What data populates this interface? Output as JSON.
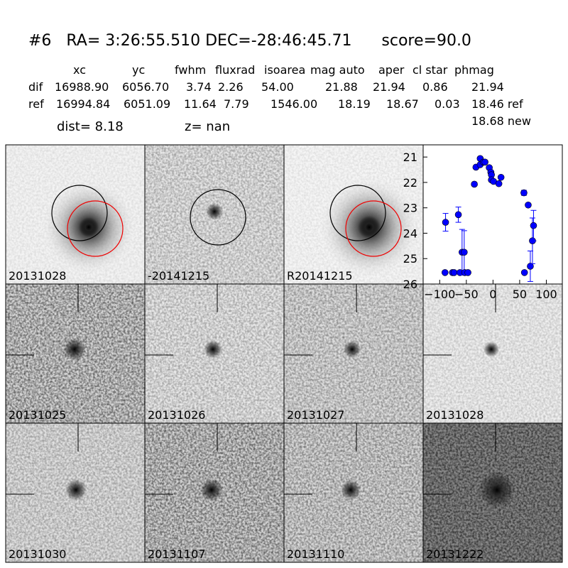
{
  "header": {
    "title": "#6   RA= 3:26:55.510 DEC=-28:46:45.71      score=90.0",
    "columns": [
      "xc",
      "yc",
      "fwhm",
      "fluxrad",
      "isoarea",
      "mag auto",
      "aper",
      "cl star",
      "phmag"
    ],
    "rows": [
      [
        "dif",
        "16988.90",
        "6056.70",
        "3.74",
        "2.26",
        "54.00",
        "21.88",
        "21.94",
        "0.86",
        "21.94"
      ],
      [
        "ref",
        "16994.84",
        "6051.09",
        "11.64",
        "7.79",
        "1546.00",
        "18.19",
        "18.67",
        "0.03",
        "18.46 ref"
      ]
    ],
    "extra": "18.68 new",
    "dist": "dist=  8.18",
    "z": "z=   nan"
  },
  "panels": [
    {
      "label": "20131028"
    },
    {
      "label": "-20141215"
    },
    {
      "label": "R20141215"
    },
    {
      "label": null
    },
    {
      "label": "20131025"
    },
    {
      "label": "20131026"
    },
    {
      "label": "20131027"
    },
    {
      "label": "20131028",
      "color": "#ff0000"
    },
    {
      "label": "20131030"
    },
    {
      "label": "20131107"
    },
    {
      "label": "20131110"
    },
    {
      "label": "20131222"
    }
  ],
  "chart_data": {
    "type": "scatter",
    "color": "#0000ff",
    "x": [
      -90,
      -89,
      -76,
      -73,
      -65,
      -62,
      -58,
      -54,
      -53,
      -47,
      -35,
      -32,
      -24,
      -24,
      -18,
      -15,
      -7,
      -4,
      -3,
      -3,
      1,
      11,
      15,
      58,
      59,
      66,
      70,
      74,
      76
    ],
    "values": [
      25.55,
      23.57,
      25.55,
      25.55,
      23.27,
      25.55,
      24.75,
      24.75,
      25.55,
      25.55,
      22.07,
      21.4,
      21.06,
      21.3,
      21.2,
      21.2,
      21.42,
      21.6,
      21.7,
      21.9,
      21.96,
      22.05,
      21.8,
      22.41,
      25.55,
      22.89,
      25.3,
      24.3,
      23.7
    ],
    "errors": [
      null,
      0.35,
      null,
      null,
      0.3,
      null,
      0.9,
      0.85,
      null,
      null,
      null,
      null,
      null,
      null,
      null,
      null,
      null,
      null,
      null,
      null,
      null,
      null,
      null,
      0.1,
      null,
      null,
      0.6,
      0.9,
      0.6
    ],
    "xlim": [
      -131,
      130
    ],
    "ylim": [
      26,
      20.52
    ],
    "xticks": [
      {
        "value": -100,
        "label": "−100"
      },
      {
        "value": -50,
        "label": "−50"
      },
      0,
      50,
      100
    ],
    "yticks": [
      21,
      22,
      23,
      24,
      25,
      26
    ]
  }
}
